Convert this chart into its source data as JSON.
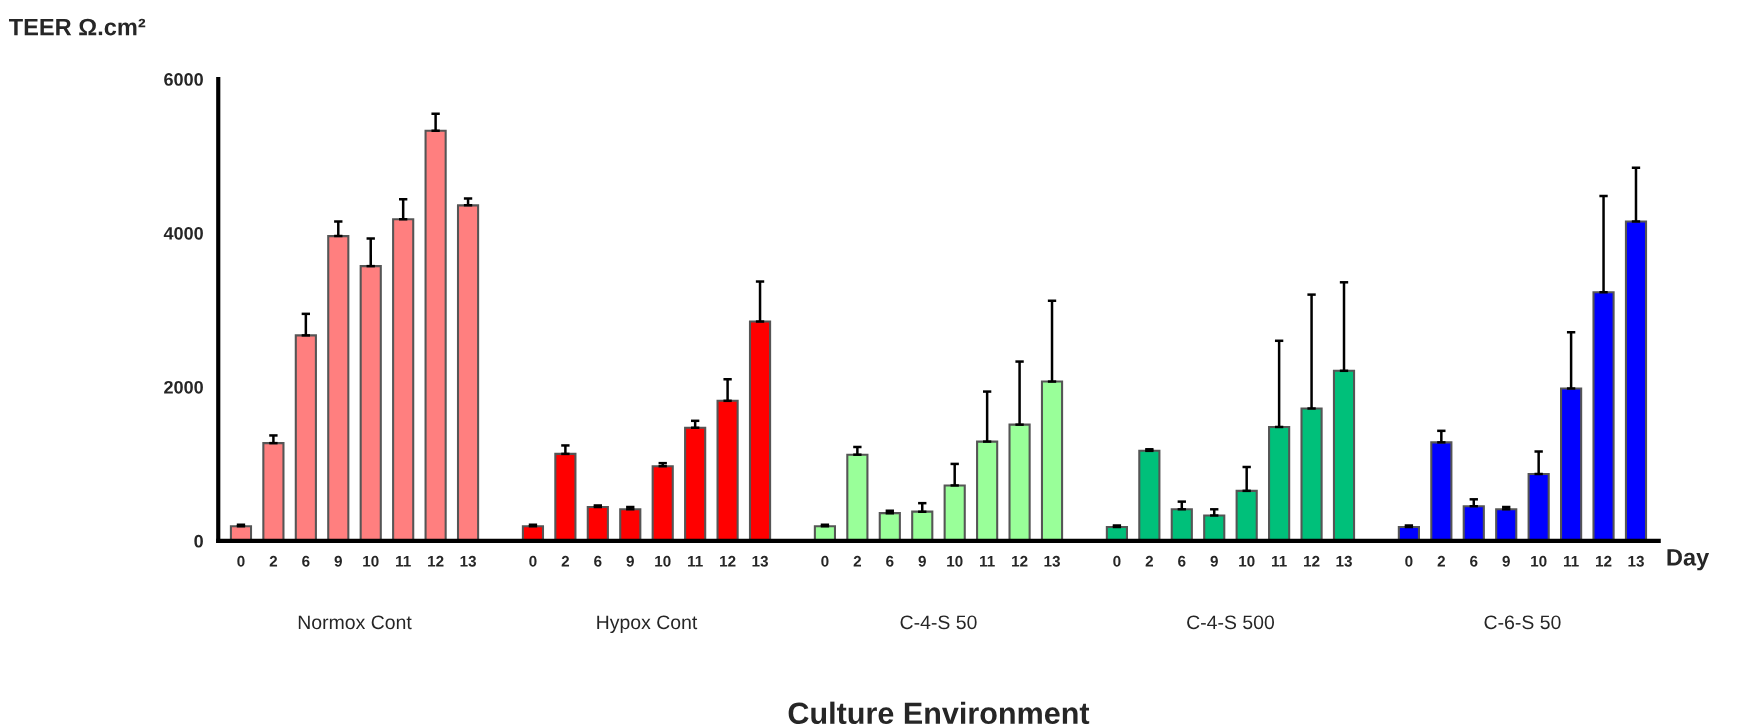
{
  "chart_data": {
    "type": "bar",
    "ylabel": "TEER Ω.cm²",
    "xlabel": "Culture Environment",
    "annotations": [
      "Day",
      "Normox Cont",
      "Hypox Cont",
      "C-4-S 50",
      "C-4-S 500",
      "C-6-S 50"
    ],
    "categories": [
      "0",
      "2",
      "6",
      "9",
      "10",
      "11",
      "12",
      "13",
      null,
      "0",
      "2",
      "6",
      "9",
      "10",
      "11",
      "12",
      "13",
      null,
      "0",
      "2",
      "6",
      "9",
      "10",
      "11",
      "12",
      "13",
      null,
      "0",
      "2",
      "6",
      "9",
      "10",
      "11",
      "12",
      "13",
      null,
      "0",
      "2",
      "6",
      "9",
      "10",
      "11",
      "12",
      "13"
    ],
    "ylim": [
      0,
      6000
    ],
    "yticks": [
      0,
      2000,
      4000,
      6000
    ],
    "grid": false,
    "legend": false,
    "series": [
      {
        "color": "#ff7f7f",
        "values": [
          190,
          1270,
          2670,
          3960,
          3570,
          4180,
          5330,
          4360,
          null,
          null,
          null,
          null,
          null,
          null,
          null,
          null,
          null,
          null,
          null,
          null,
          null,
          null,
          null,
          null,
          null,
          null,
          null,
          null,
          null,
          null,
          null,
          null,
          null,
          null,
          null,
          null,
          null,
          null,
          null,
          null,
          null,
          null,
          null,
          null
        ],
        "errors": [
          20,
          100,
          280,
          190,
          360,
          260,
          220,
          90,
          null,
          null,
          null,
          null,
          null,
          null,
          null,
          null,
          null,
          null,
          null,
          null,
          null,
          null,
          null,
          null,
          null,
          null,
          null,
          null,
          null,
          null,
          null,
          null,
          null,
          null,
          null,
          null,
          null,
          null,
          null,
          null,
          null,
          null,
          null,
          null
        ]
      },
      {
        "color": "#ff0000",
        "values": [
          null,
          null,
          null,
          null,
          null,
          null,
          null,
          null,
          null,
          190,
          1130,
          440,
          410,
          970,
          1470,
          1820,
          2850,
          null,
          null,
          null,
          null,
          null,
          null,
          null,
          null,
          null,
          null,
          null,
          null,
          null,
          null,
          null,
          null,
          null,
          null,
          null,
          null,
          null,
          null,
          null,
          null,
          null,
          null,
          null
        ],
        "errors": [
          null,
          null,
          null,
          null,
          null,
          null,
          null,
          null,
          null,
          20,
          110,
          20,
          30,
          40,
          90,
          280,
          520,
          null,
          null,
          null,
          null,
          null,
          null,
          null,
          null,
          null,
          null,
          null,
          null,
          null,
          null,
          null,
          null,
          null,
          null,
          null,
          null,
          null,
          null,
          null,
          null,
          null,
          null,
          null
        ]
      },
      {
        "color": "#99ff99",
        "values": [
          null,
          null,
          null,
          null,
          null,
          null,
          null,
          null,
          null,
          null,
          null,
          null,
          null,
          null,
          null,
          null,
          null,
          null,
          190,
          1120,
          360,
          380,
          720,
          1290,
          1510,
          2070,
          null,
          null,
          null,
          null,
          null,
          null,
          null,
          null,
          null,
          null,
          null,
          null,
          null,
          null,
          null,
          null,
          null,
          null
        ],
        "errors": [
          null,
          null,
          null,
          null,
          null,
          null,
          null,
          null,
          null,
          null,
          null,
          null,
          null,
          null,
          null,
          null,
          null,
          null,
          20,
          100,
          30,
          110,
          280,
          650,
          820,
          1050,
          null,
          null,
          null,
          null,
          null,
          null,
          null,
          null,
          null,
          null,
          null,
          null,
          null,
          null,
          null,
          null,
          null,
          null
        ]
      },
      {
        "color": "#00c07a",
        "values": [
          null,
          null,
          null,
          null,
          null,
          null,
          null,
          null,
          null,
          null,
          null,
          null,
          null,
          null,
          null,
          null,
          null,
          null,
          null,
          null,
          null,
          null,
          null,
          null,
          null,
          null,
          null,
          180,
          1170,
          410,
          330,
          650,
          1480,
          1720,
          2210,
          null,
          null,
          null,
          null,
          null,
          null,
          null,
          null,
          null
        ],
        "errors": [
          null,
          null,
          null,
          null,
          null,
          null,
          null,
          null,
          null,
          null,
          null,
          null,
          null,
          null,
          null,
          null,
          null,
          null,
          null,
          null,
          null,
          null,
          null,
          null,
          null,
          null,
          null,
          20,
          20,
          100,
          80,
          310,
          1120,
          1480,
          1150,
          null,
          null,
          null,
          null,
          null,
          null,
          null,
          null,
          null
        ]
      },
      {
        "color": "#0000ff",
        "values": [
          null,
          null,
          null,
          null,
          null,
          null,
          null,
          null,
          null,
          null,
          null,
          null,
          null,
          null,
          null,
          null,
          null,
          null,
          null,
          null,
          null,
          null,
          null,
          null,
          null,
          null,
          null,
          null,
          null,
          null,
          null,
          null,
          null,
          null,
          null,
          null,
          180,
          1280,
          450,
          410,
          870,
          1980,
          3230,
          4150
        ],
        "errors": [
          null,
          null,
          null,
          null,
          null,
          null,
          null,
          null,
          null,
          null,
          null,
          null,
          null,
          null,
          null,
          null,
          null,
          null,
          null,
          null,
          null,
          null,
          null,
          null,
          null,
          null,
          null,
          null,
          null,
          null,
          null,
          null,
          null,
          null,
          null,
          null,
          20,
          150,
          90,
          30,
          290,
          730,
          1250,
          700
        ]
      }
    ]
  }
}
